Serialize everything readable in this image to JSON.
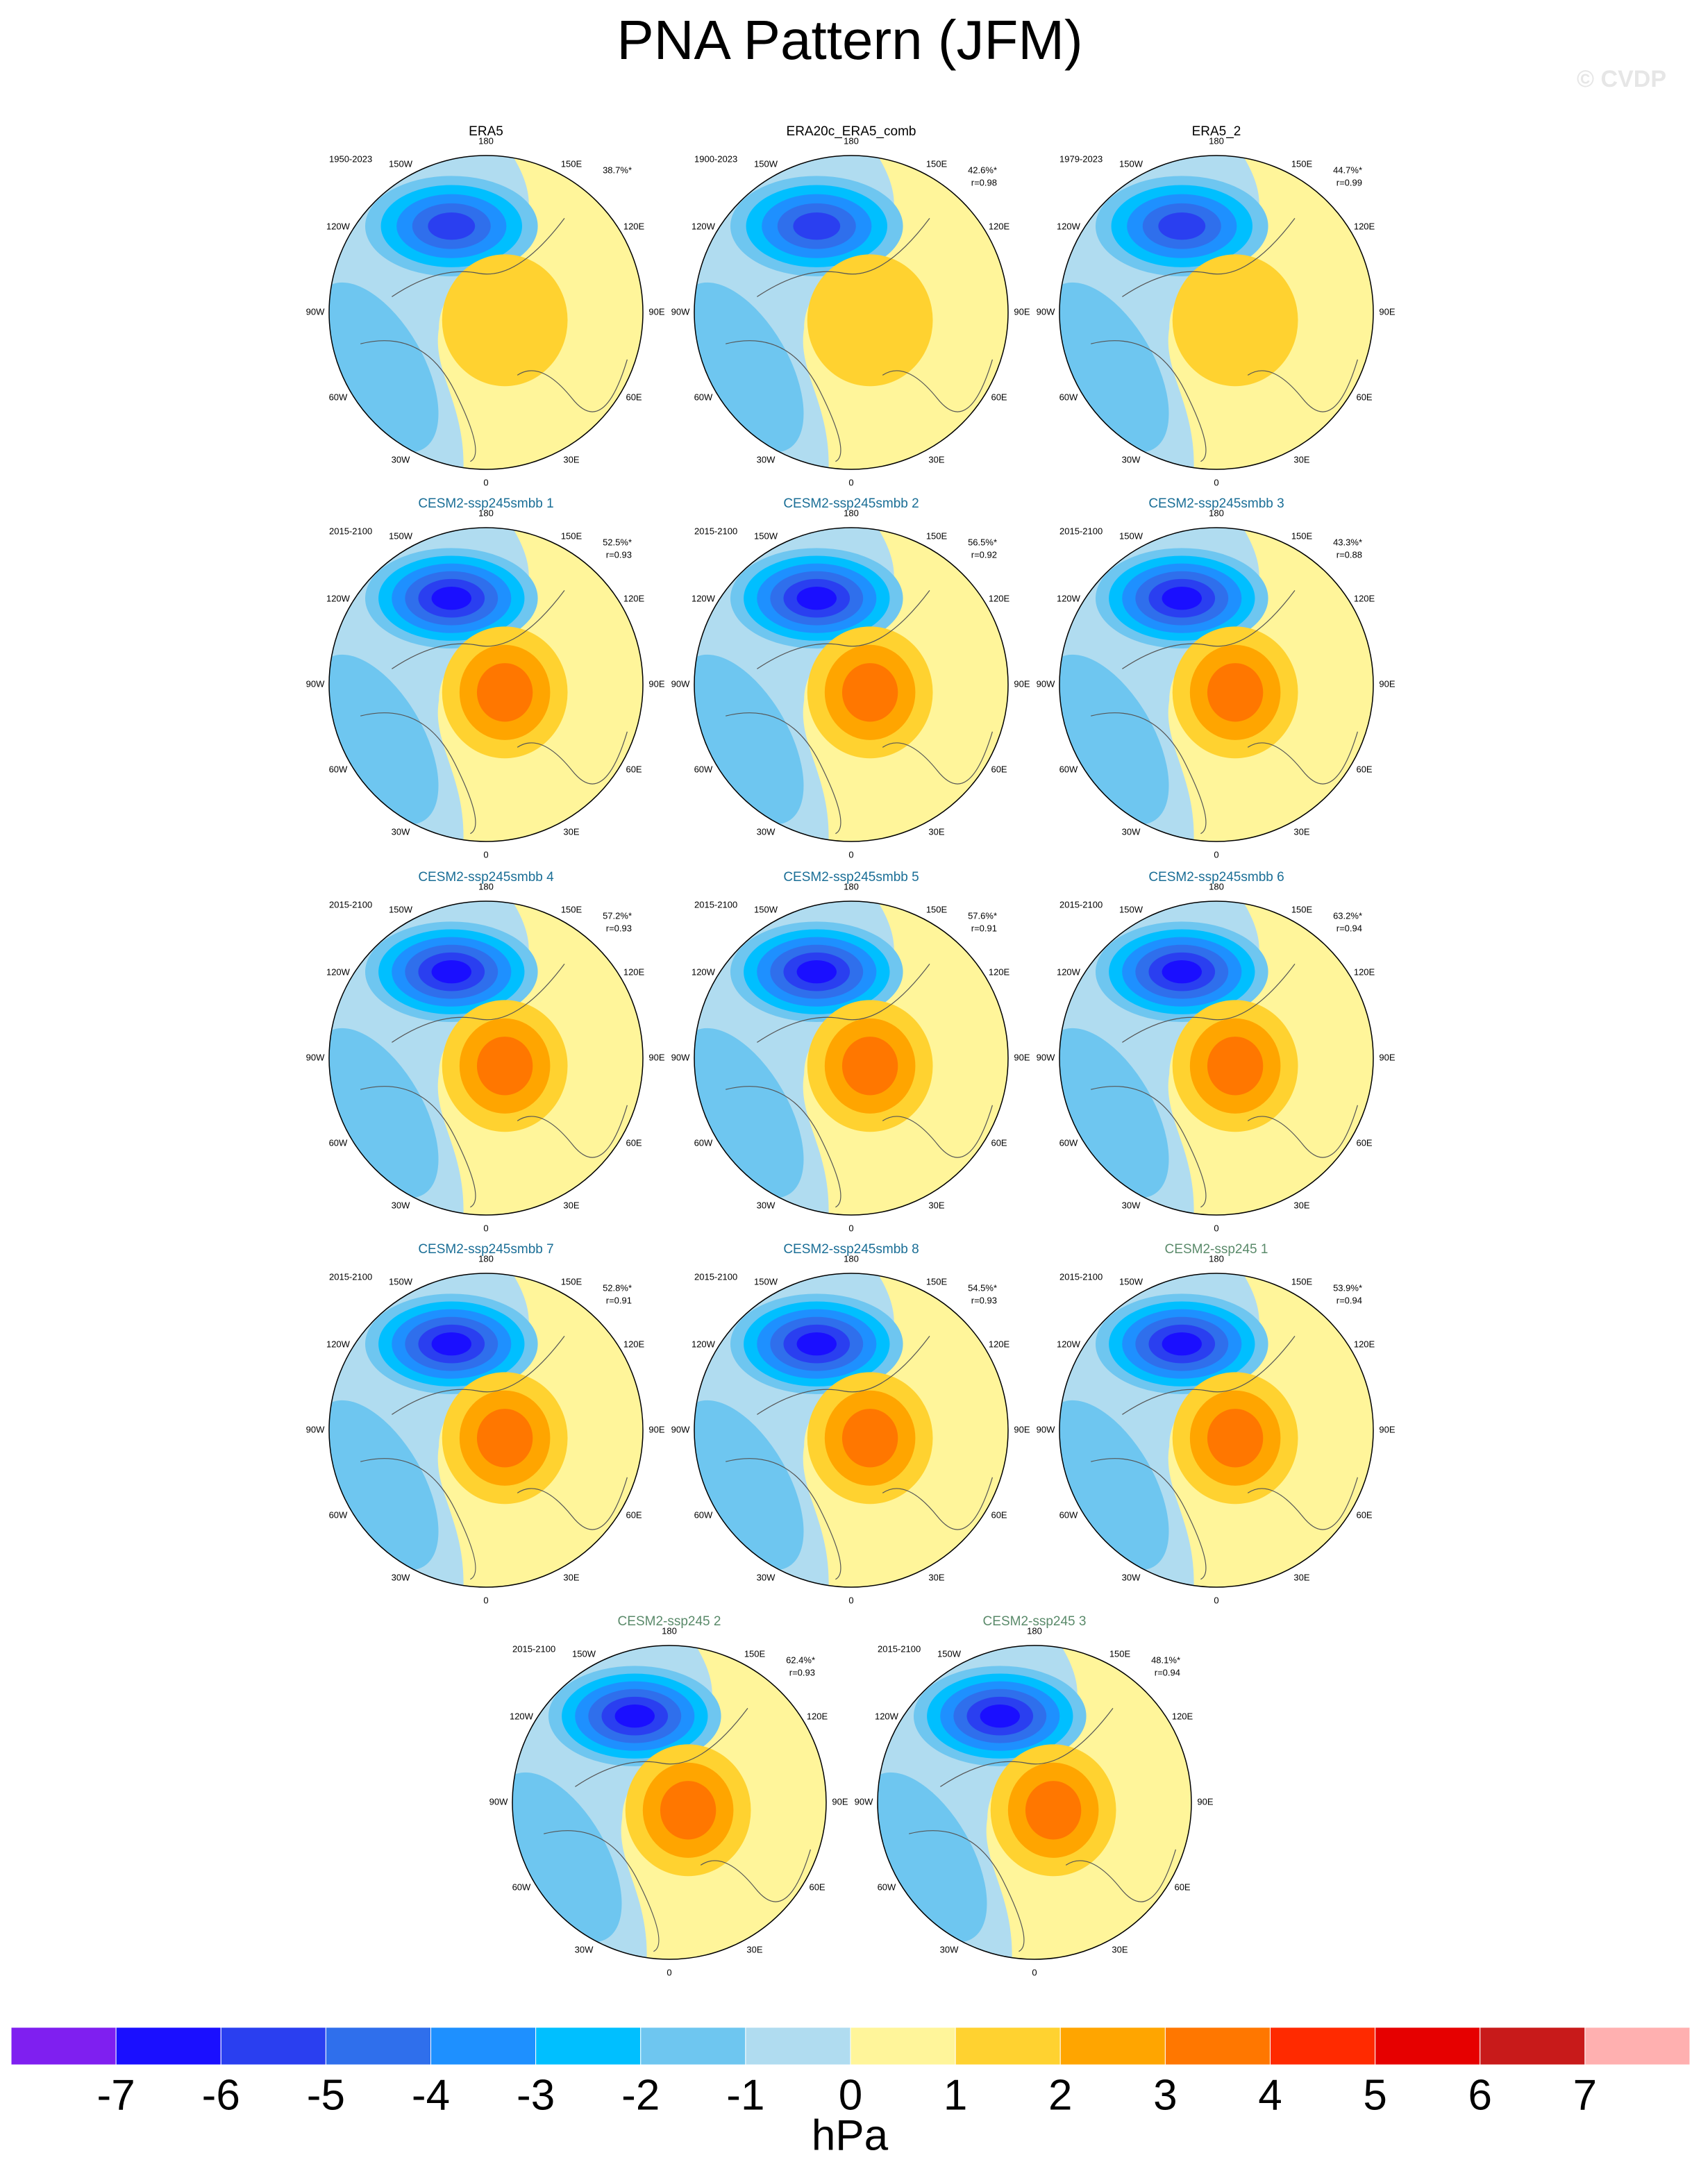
{
  "title": "PNA Pattern (JFM)",
  "watermark": "© CVDP",
  "longitude_labels": [
    "180",
    "150E",
    "120E",
    "90E",
    "60E",
    "30E",
    "0",
    "30W",
    "60W",
    "90W",
    "120W",
    "150W"
  ],
  "panels": [
    {
      "title": "ERA5",
      "color": "#000000",
      "period": "1950-2023",
      "percent": "38.7%*"
    },
    {
      "title": "ERA20c_ERA5_comb",
      "color": "#000000",
      "period": "1900-2023",
      "percent": "42.6%*",
      "r": "r=0.98"
    },
    {
      "title": "ERA5_2",
      "color": "#000000",
      "period": "1979-2023",
      "percent": "44.7%*",
      "r": "r=0.99"
    },
    {
      "title": "CESM2-ssp245smbb 1",
      "color": "#1a6e96",
      "period": "2015-2100",
      "percent": "52.5%*",
      "r": "r=0.93"
    },
    {
      "title": "CESM2-ssp245smbb 2",
      "color": "#1a6e96",
      "period": "2015-2100",
      "percent": "56.5%*",
      "r": "r=0.92"
    },
    {
      "title": "CESM2-ssp245smbb 3",
      "color": "#1a6e96",
      "period": "2015-2100",
      "percent": "43.3%*",
      "r": "r=0.88"
    },
    {
      "title": "CESM2-ssp245smbb 4",
      "color": "#1a6e96",
      "period": "2015-2100",
      "percent": "57.2%*",
      "r": "r=0.93"
    },
    {
      "title": "CESM2-ssp245smbb 5",
      "color": "#1a6e96",
      "period": "2015-2100",
      "percent": "57.6%*",
      "r": "r=0.91"
    },
    {
      "title": "CESM2-ssp245smbb 6",
      "color": "#1a6e96",
      "period": "2015-2100",
      "percent": "63.2%*",
      "r": "r=0.94"
    },
    {
      "title": "CESM2-ssp245smbb 7",
      "color": "#1a6e96",
      "period": "2015-2100",
      "percent": "52.8%*",
      "r": "r=0.91"
    },
    {
      "title": "CESM2-ssp245smbb 8",
      "color": "#1a6e96",
      "period": "2015-2100",
      "percent": "54.5%*",
      "r": "r=0.93"
    },
    {
      "title": "CESM2-ssp245 1",
      "color": "#5a8a6a",
      "period": "2015-2100",
      "percent": "53.9%*",
      "r": "r=0.94"
    },
    {
      "title": "CESM2-ssp245 2",
      "color": "#5a8a6a",
      "period": "2015-2100",
      "percent": "62.4%*",
      "r": "r=0.93"
    },
    {
      "title": "CESM2-ssp245 3",
      "color": "#5a8a6a",
      "period": "2015-2100",
      "percent": "48.1%*",
      "r": "r=0.94"
    }
  ],
  "colorbar": {
    "colors": [
      "#7f1ff0",
      "#1a0fff",
      "#2a3ff0",
      "#2f6fec",
      "#1e90ff",
      "#00bfff",
      "#6ec6f0",
      "#b0dcf0",
      "#fff59a",
      "#ffd230",
      "#ffa500",
      "#ff7700",
      "#ff2a00",
      "#e60000",
      "#c81a1a",
      "#ffb0b0"
    ],
    "ticks": [
      -7,
      -6,
      -5,
      -4,
      -3,
      -2,
      -1,
      0,
      1,
      2,
      3,
      4,
      5,
      6,
      7
    ],
    "unit": "hPa"
  }
}
